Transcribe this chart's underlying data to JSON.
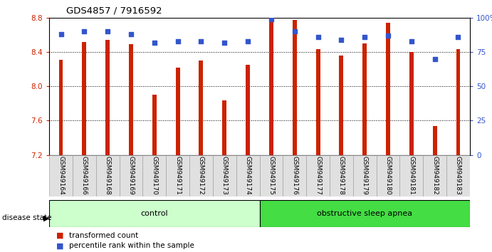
{
  "title": "GDS4857 / 7916592",
  "samples": [
    "GSM949164",
    "GSM949166",
    "GSM949168",
    "GSM949169",
    "GSM949170",
    "GSM949171",
    "GSM949172",
    "GSM949173",
    "GSM949174",
    "GSM949175",
    "GSM949176",
    "GSM949177",
    "GSM949178",
    "GSM949179",
    "GSM949180",
    "GSM949181",
    "GSM949182",
    "GSM949183"
  ],
  "transformed_count": [
    8.31,
    8.52,
    8.54,
    8.49,
    7.9,
    8.22,
    8.3,
    7.84,
    8.25,
    8.8,
    8.77,
    8.43,
    8.36,
    8.5,
    8.74,
    8.4,
    7.54,
    8.43
  ],
  "percentile_rank": [
    88,
    90,
    90,
    88,
    82,
    83,
    83,
    82,
    83,
    99,
    90,
    86,
    84,
    86,
    87,
    83,
    70,
    86
  ],
  "ylim_left": [
    7.2,
    8.8
  ],
  "ylim_right": [
    0,
    100
  ],
  "yticks_left": [
    7.2,
    7.6,
    8.0,
    8.4,
    8.8
  ],
  "yticks_right": [
    0,
    25,
    50,
    75,
    100
  ],
  "bar_color": "#cc2200",
  "dot_color": "#3355cc",
  "bar_bottom": 7.2,
  "groups": [
    {
      "label": "control",
      "start": 0,
      "end": 9,
      "color": "#ccffcc"
    },
    {
      "label": "obstructive sleep apnea",
      "start": 9,
      "end": 18,
      "color": "#44dd44"
    }
  ],
  "disease_state_label": "disease state",
  "legend_bar_label": "transformed count",
  "legend_dot_label": "percentile rank within the sample",
  "background_color": "#ffffff",
  "axis_label_color_left": "#cc2200",
  "axis_label_color_right": "#3355cc"
}
